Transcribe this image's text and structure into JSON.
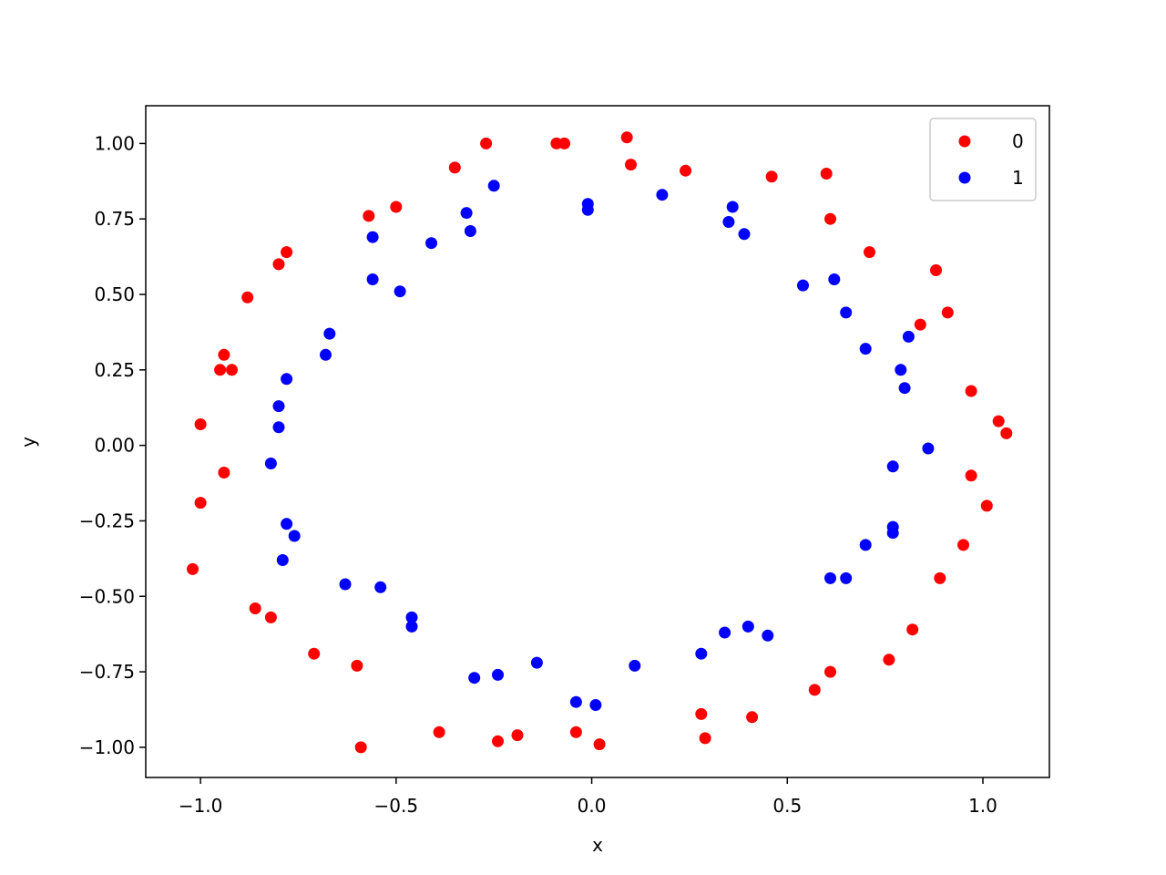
{
  "chart_data": {
    "type": "scatter",
    "title": "",
    "xlabel": "x",
    "ylabel": "y",
    "xlim": [
      -1.14,
      1.17
    ],
    "ylim": [
      -1.1,
      1.125
    ],
    "xticks": [
      -1.0,
      -0.5,
      0.0,
      0.5,
      1.0
    ],
    "xtick_labels": [
      "−1.0",
      "−0.5",
      "0.0",
      "0.5",
      "1.0"
    ],
    "yticks": [
      1.0,
      0.75,
      0.5,
      0.25,
      0.0,
      -0.25,
      -0.5,
      -0.75,
      -1.0
    ],
    "ytick_labels": [
      "1.00",
      "0.75",
      "0.50",
      "0.25",
      "0.00",
      "−0.25",
      "−0.50",
      "−0.75",
      "−1.00"
    ],
    "grid": false,
    "legend_position": "top-right",
    "series": [
      {
        "name": "0",
        "color": "#ff0000",
        "points": [
          [
            -0.27,
            1.0
          ],
          [
            -0.09,
            1.0
          ],
          [
            -0.07,
            1.0
          ],
          [
            0.09,
            1.02
          ],
          [
            -0.35,
            0.92
          ],
          [
            0.1,
            0.93
          ],
          [
            0.24,
            0.91
          ],
          [
            0.46,
            0.89
          ],
          [
            0.6,
            0.9
          ],
          [
            -0.5,
            0.79
          ],
          [
            -0.57,
            0.76
          ],
          [
            0.61,
            0.75
          ],
          [
            -0.78,
            0.64
          ],
          [
            -0.8,
            0.6
          ],
          [
            0.71,
            0.64
          ],
          [
            0.88,
            0.58
          ],
          [
            -0.88,
            0.49
          ],
          [
            0.91,
            0.44
          ],
          [
            0.84,
            0.4
          ],
          [
            -0.94,
            0.3
          ],
          [
            -0.95,
            0.25
          ],
          [
            -0.92,
            0.25
          ],
          [
            0.97,
            0.18
          ],
          [
            -1.0,
            0.07
          ],
          [
            1.04,
            0.08
          ],
          [
            1.06,
            0.04
          ],
          [
            -0.94,
            -0.09
          ],
          [
            0.97,
            -0.1
          ],
          [
            -1.0,
            -0.19
          ],
          [
            1.01,
            -0.2
          ],
          [
            0.95,
            -0.33
          ],
          [
            -1.02,
            -0.41
          ],
          [
            0.89,
            -0.44
          ],
          [
            -0.86,
            -0.54
          ],
          [
            -0.82,
            -0.57
          ],
          [
            0.82,
            -0.61
          ],
          [
            -0.71,
            -0.69
          ],
          [
            0.76,
            -0.71
          ],
          [
            -0.6,
            -0.73
          ],
          [
            0.61,
            -0.75
          ],
          [
            0.57,
            -0.81
          ],
          [
            0.28,
            -0.89
          ],
          [
            0.41,
            -0.9
          ],
          [
            -0.39,
            -0.95
          ],
          [
            -0.04,
            -0.95
          ],
          [
            -0.19,
            -0.96
          ],
          [
            -0.24,
            -0.98
          ],
          [
            0.29,
            -0.97
          ],
          [
            0.02,
            -0.99
          ],
          [
            -0.59,
            -1.0
          ]
        ]
      },
      {
        "name": "1",
        "color": "#0000ff",
        "points": [
          [
            -0.25,
            0.86
          ],
          [
            0.18,
            0.83
          ],
          [
            -0.01,
            0.8
          ],
          [
            0.36,
            0.79
          ],
          [
            -0.01,
            0.78
          ],
          [
            -0.32,
            0.77
          ],
          [
            0.35,
            0.74
          ],
          [
            -0.31,
            0.71
          ],
          [
            0.39,
            0.7
          ],
          [
            -0.56,
            0.69
          ],
          [
            -0.41,
            0.67
          ],
          [
            -0.56,
            0.55
          ],
          [
            0.62,
            0.55
          ],
          [
            0.54,
            0.53
          ],
          [
            -0.49,
            0.51
          ],
          [
            0.65,
            0.44
          ],
          [
            -0.67,
            0.37
          ],
          [
            0.81,
            0.36
          ],
          [
            0.7,
            0.32
          ],
          [
            -0.68,
            0.3
          ],
          [
            0.79,
            0.25
          ],
          [
            -0.78,
            0.22
          ],
          [
            0.8,
            0.19
          ],
          [
            -0.8,
            0.13
          ],
          [
            -0.8,
            0.06
          ],
          [
            0.86,
            -0.01
          ],
          [
            -0.82,
            -0.06
          ],
          [
            0.77,
            -0.07
          ],
          [
            -0.78,
            -0.26
          ],
          [
            0.77,
            -0.27
          ],
          [
            -0.76,
            -0.3
          ],
          [
            0.77,
            -0.29
          ],
          [
            0.7,
            -0.33
          ],
          [
            -0.79,
            -0.38
          ],
          [
            -0.63,
            -0.46
          ],
          [
            0.61,
            -0.44
          ],
          [
            0.65,
            -0.44
          ],
          [
            -0.54,
            -0.47
          ],
          [
            -0.46,
            -0.57
          ],
          [
            -0.46,
            -0.6
          ],
          [
            0.4,
            -0.6
          ],
          [
            0.34,
            -0.62
          ],
          [
            0.45,
            -0.63
          ],
          [
            0.28,
            -0.69
          ],
          [
            -0.14,
            -0.72
          ],
          [
            0.11,
            -0.73
          ],
          [
            -0.24,
            -0.76
          ],
          [
            -0.3,
            -0.77
          ],
          [
            -0.04,
            -0.85
          ],
          [
            0.01,
            -0.86
          ]
        ]
      }
    ]
  }
}
